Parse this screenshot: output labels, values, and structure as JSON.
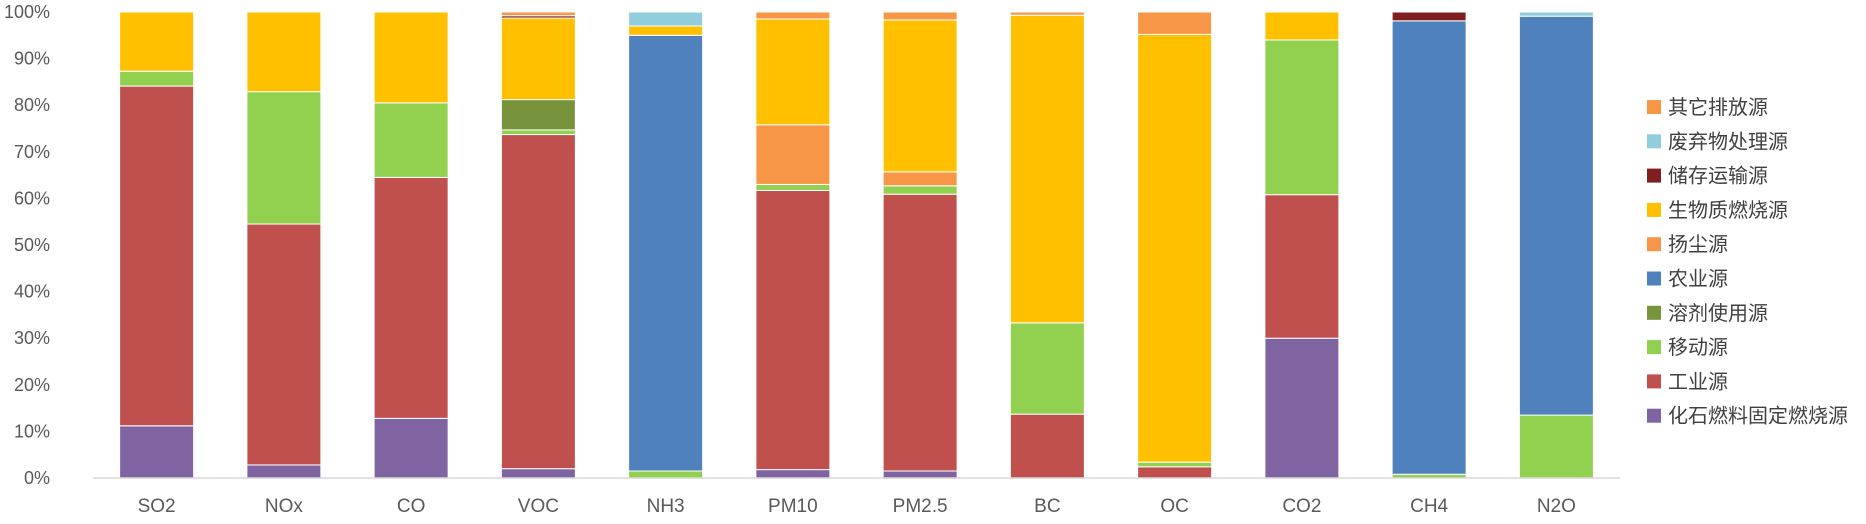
{
  "chart_data": {
    "type": "bar",
    "stacked": true,
    "percent": true,
    "title": "",
    "xlabel": "",
    "ylabel": "",
    "ylim": [
      0,
      100
    ],
    "yticks": [
      "0%",
      "10%",
      "20%",
      "30%",
      "40%",
      "50%",
      "60%",
      "70%",
      "80%",
      "90%",
      "100%"
    ],
    "grid": false,
    "legend_position": "right",
    "categories": [
      "SO2",
      "NOx",
      "CO",
      "VOC",
      "NH3",
      "PM10",
      "PM2.5",
      "BC",
      "OC",
      "CO2",
      "CH4",
      "N2O"
    ],
    "series": [
      {
        "name": "化石燃料固定燃烧源",
        "color": "#8064a2",
        "values": [
          11.2,
          2.8,
          12.8,
          2.0,
          0,
          1.8,
          1.5,
          0,
          0,
          30.0,
          0,
          0
        ]
      },
      {
        "name": "工业源",
        "color": "#c0504d",
        "values": [
          72.9,
          51.7,
          51.7,
          71.7,
          0,
          59.9,
          59.4,
          13.7,
          2.4,
          30.8,
          0,
          0
        ]
      },
      {
        "name": "移动源",
        "color": "#92d050",
        "values": [
          3.2,
          28.4,
          16.0,
          1.0,
          1.5,
          1.3,
          1.8,
          19.6,
          1.0,
          33.2,
          0.8,
          13.5
        ]
      },
      {
        "name": "溶剂使用源",
        "color": "#77933c",
        "values": [
          0,
          0,
          0,
          6.5,
          0,
          0,
          0,
          0,
          0,
          0,
          0,
          0
        ]
      },
      {
        "name": "农业源",
        "color": "#4f81bd",
        "values": [
          0,
          0,
          0,
          0,
          93.5,
          0,
          0,
          0,
          0,
          0,
          97.3,
          85.6
        ]
      },
      {
        "name": "扬尘源",
        "color": "#f79646",
        "values": [
          0,
          0,
          0,
          0,
          0,
          12.8,
          3.0,
          0,
          0,
          0,
          0,
          0
        ]
      },
      {
        "name": "生物质燃烧源",
        "color": "#ffc000",
        "values": [
          12.7,
          17.1,
          19.5,
          17.5,
          2.0,
          22.7,
          32.6,
          66.0,
          91.8,
          6.0,
          0,
          0
        ]
      },
      {
        "name": "储存运输源",
        "color": "#7f1f1f",
        "values": [
          0,
          0,
          0,
          0.5,
          0,
          0,
          0,
          0,
          0,
          0,
          1.9,
          0
        ]
      },
      {
        "name": "废弃物处理源",
        "color": "#92cddc",
        "values": [
          0,
          0,
          0,
          0,
          3.0,
          0,
          0,
          0,
          0,
          0,
          0,
          0.9
        ]
      },
      {
        "name": "其它排放源",
        "color": "#f79646",
        "values": [
          0,
          0,
          0,
          0.8,
          0,
          1.5,
          1.7,
          0.7,
          4.8,
          0,
          0,
          0
        ]
      }
    ]
  }
}
